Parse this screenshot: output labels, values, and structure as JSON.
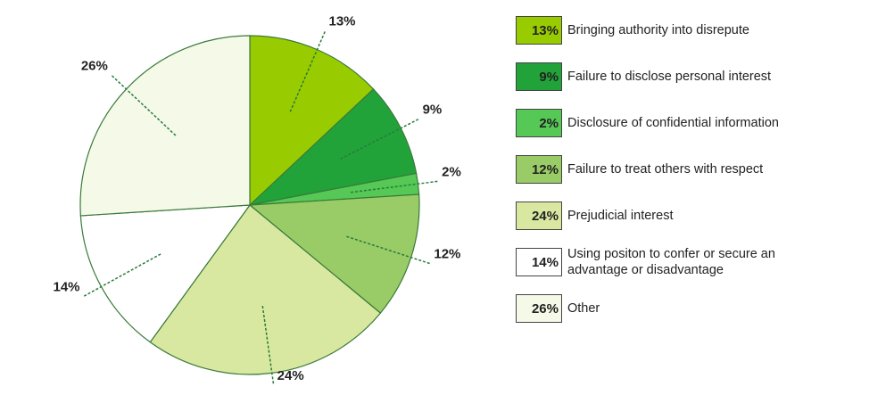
{
  "chart_data": {
    "type": "pie",
    "categories": [
      "Bringing authority into disrepute",
      "Failure to disclose personal interest",
      "Disclosure of confidential information",
      "Failure to treat others with respect",
      "Prejudicial interest",
      "Using positon to confer or secure an advantage or disadvantage",
      "Other"
    ],
    "values": [
      13,
      9,
      2,
      12,
      24,
      14,
      26
    ],
    "value_labels": [
      "13%",
      "9%",
      "2%",
      "12%",
      "24%",
      "14%",
      "26%"
    ],
    "colors": [
      "#99cc00",
      "#22a33a",
      "#55c855",
      "#99cc66",
      "#d9e8a0",
      "#ffffff",
      "#f4f9e8"
    ]
  }
}
